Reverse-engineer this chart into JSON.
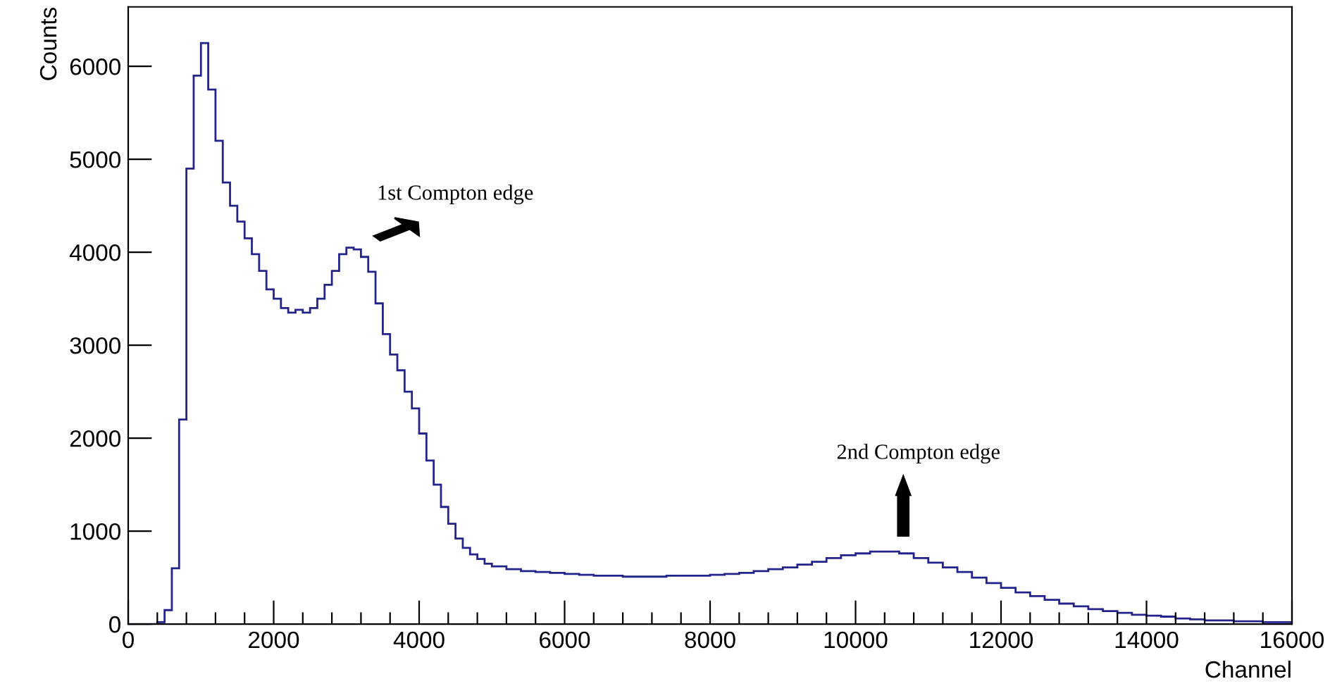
{
  "chart_data": {
    "type": "histogram",
    "xlabel": "Channel",
    "ylabel": "Counts",
    "color": "#23238c",
    "bins": [
      0,
      100,
      200,
      300,
      400,
      500,
      600,
      700,
      800,
      900,
      1000,
      1100,
      1200,
      1300,
      1400,
      1500,
      1600,
      1700,
      1800,
      1900,
      2000,
      2100,
      2200,
      2300,
      2400,
      2500,
      2600,
      2700,
      2800,
      2900,
      3000,
      3100,
      3200,
      3300,
      3400,
      3500,
      3600,
      3700,
      3800,
      3900,
      4000,
      4100,
      4200,
      4300,
      4400,
      4500,
      4600,
      4700,
      4800,
      4900,
      5000,
      5200,
      5400,
      5600,
      5800,
      6000,
      6200,
      6400,
      6600,
      6800,
      7000,
      7200,
      7400,
      7600,
      7800,
      8000,
      8200,
      8400,
      8600,
      8800,
      9000,
      9200,
      9400,
      9600,
      9800,
      10000,
      10200,
      10400,
      10600,
      10800,
      11000,
      11200,
      11400,
      11600,
      11800,
      12000,
      12200,
      12400,
      12600,
      12800,
      13000,
      13200,
      13400,
      13600,
      13800,
      14000,
      14200,
      14400,
      14600,
      14800,
      15000,
      15200,
      15400,
      15600,
      15800,
      16000
    ],
    "values": [
      0,
      0,
      0,
      0,
      20,
      150,
      600,
      2200,
      4900,
      5900,
      6250,
      5750,
      5200,
      4750,
      4500,
      4330,
      4150,
      3980,
      3800,
      3600,
      3500,
      3400,
      3350,
      3380,
      3350,
      3400,
      3500,
      3650,
      3800,
      3980,
      4050,
      4030,
      3950,
      3790,
      3450,
      3120,
      2900,
      2730,
      2500,
      2320,
      2050,
      1760,
      1500,
      1260,
      1080,
      920,
      820,
      750,
      700,
      650,
      620,
      590,
      570,
      560,
      550,
      540,
      530,
      520,
      520,
      510,
      510,
      510,
      520,
      520,
      520,
      530,
      540,
      550,
      570,
      590,
      610,
      640,
      670,
      710,
      740,
      760,
      780,
      780,
      760,
      710,
      660,
      610,
      560,
      500,
      440,
      390,
      340,
      300,
      260,
      220,
      190,
      160,
      140,
      120,
      100,
      90,
      80,
      60,
      50,
      40,
      40,
      30,
      30,
      20,
      20
    ],
    "xlim": [
      0,
      16000
    ],
    "xticks": [
      0,
      {
        "value": 400,
        "label": null
      },
      {
        "value": 800,
        "label": null
      },
      {
        "value": 1200,
        "label": null
      },
      {
        "value": 1600,
        "label": null
      },
      2000,
      {
        "value": 2400,
        "label": null
      },
      {
        "value": 2800,
        "label": null
      },
      {
        "value": 3200,
        "label": null
      },
      {
        "value": 3600,
        "label": null
      },
      4000,
      {
        "value": 4400,
        "label": null
      },
      {
        "value": 4800,
        "label": null
      },
      {
        "value": 5200,
        "label": null
      },
      {
        "value": 5600,
        "label": null
      },
      6000,
      {
        "value": 6400,
        "label": null
      },
      {
        "value": 6800,
        "label": null
      },
      {
        "value": 7200,
        "label": null
      },
      {
        "value": 7600,
        "label": null
      },
      8000,
      {
        "value": 8400,
        "label": null
      },
      {
        "value": 8800,
        "label": null
      },
      {
        "value": 9200,
        "label": null
      },
      {
        "value": 9600,
        "label": null
      },
      10000,
      {
        "value": 10400,
        "label": null
      },
      {
        "value": 10800,
        "label": null
      },
      {
        "value": 11200,
        "label": null
      },
      {
        "value": 11600,
        "label": null
      },
      12000,
      {
        "value": 12400,
        "label": null
      },
      {
        "value": 12800,
        "label": null
      },
      {
        "value": 13200,
        "label": null
      },
      {
        "value": 13600,
        "label": null
      },
      14000,
      {
        "value": 14400,
        "label": null
      },
      {
        "value": 14800,
        "label": null
      },
      {
        "value": 15200,
        "label": null
      },
      {
        "value": 15600,
        "label": null
      },
      16000
    ],
    "ylim": [
      0,
      6640
    ],
    "yticks": [
      0,
      1000,
      2000,
      3000,
      4000,
      5000,
      6000
    ],
    "grid": false,
    "annotations": [
      "1st Compton edge",
      "2nd Compton edge"
    ]
  }
}
